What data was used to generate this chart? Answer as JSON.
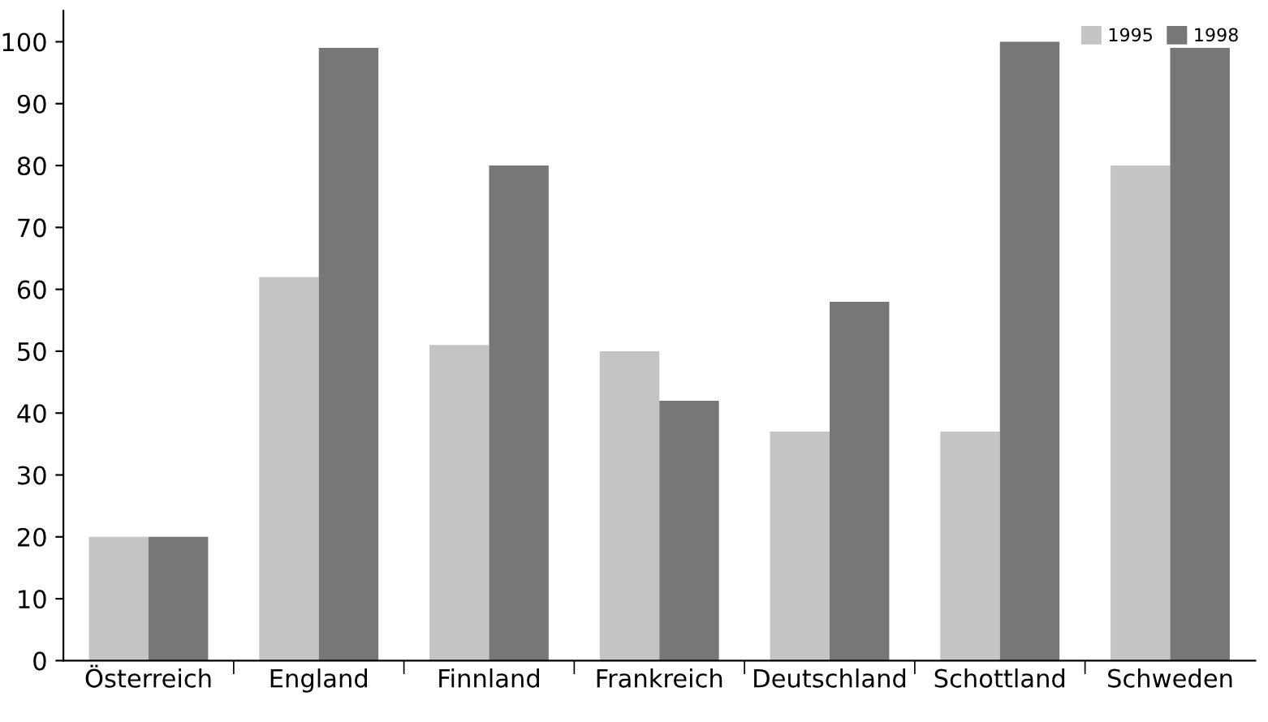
{
  "chart_data": {
    "type": "bar",
    "categories": [
      "Österreich",
      "England",
      "Finnland",
      "Frankreich",
      "Deutschland",
      "Schottland",
      "Schweden"
    ],
    "series": [
      {
        "name": "1995",
        "color": "#c4c4c4",
        "values": [
          20,
          62,
          51,
          50,
          37,
          37,
          80
        ]
      },
      {
        "name": "1998",
        "color": "#777777",
        "values": [
          20,
          99,
          80,
          42,
          58,
          100,
          99
        ]
      }
    ],
    "ylim": [
      0,
      105
    ],
    "yticks": [
      0,
      10,
      20,
      30,
      40,
      50,
      60,
      70,
      80,
      90,
      100
    ],
    "legend": "top right",
    "grid": false
  }
}
